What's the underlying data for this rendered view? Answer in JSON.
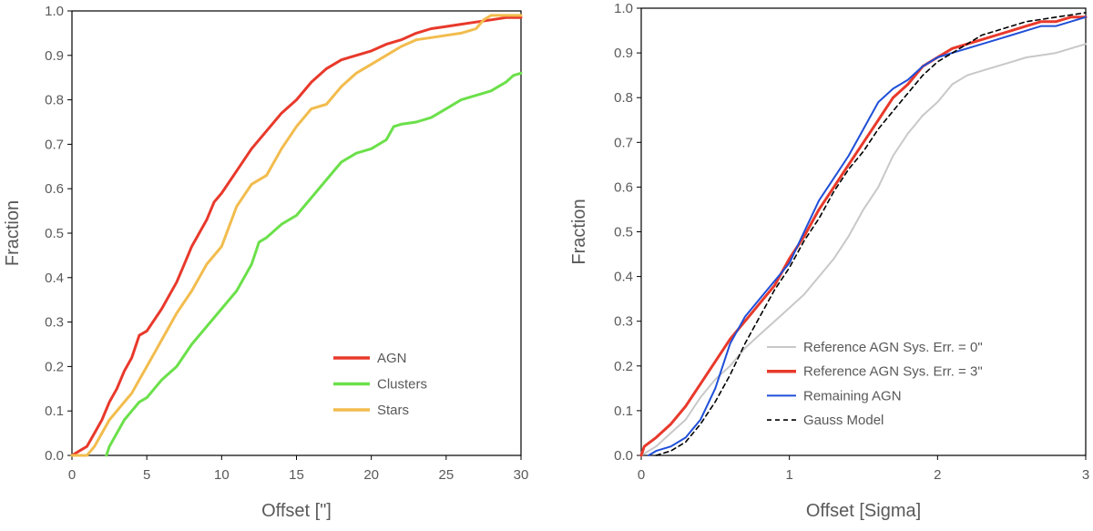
{
  "chart_data": [
    {
      "type": "line",
      "title": "",
      "xlabel": "Offset [\"]",
      "ylabel": "Fraction",
      "xlim": [
        0,
        30
      ],
      "ylim": [
        0,
        1
      ],
      "xticks": [
        "0",
        "5",
        "10",
        "15",
        "20",
        "25",
        "30"
      ],
      "yticks": [
        "0.0",
        "0.1",
        "0.2",
        "0.3",
        "0.4",
        "0.5",
        "0.6",
        "0.7",
        "0.8",
        "0.9",
        "1.0"
      ],
      "grid": false,
      "legend": "bottom-right",
      "series": [
        {
          "name": "AGN",
          "color": "#e8392b",
          "dash": "",
          "x": [
            0,
            0.5,
            1,
            1.5,
            2,
            2.5,
            3,
            3.5,
            4,
            4.5,
            5,
            6,
            6.5,
            7,
            7.5,
            8,
            8.5,
            9,
            9.5,
            10,
            11,
            12,
            13,
            14,
            15,
            16,
            17,
            18,
            19,
            20,
            21,
            22,
            23,
            24,
            25,
            26,
            27,
            28,
            29,
            30
          ],
          "y": [
            0,
            0.01,
            0.02,
            0.05,
            0.08,
            0.12,
            0.15,
            0.19,
            0.22,
            0.27,
            0.28,
            0.33,
            0.36,
            0.39,
            0.43,
            0.47,
            0.5,
            0.53,
            0.57,
            0.59,
            0.64,
            0.69,
            0.73,
            0.77,
            0.8,
            0.84,
            0.87,
            0.89,
            0.9,
            0.91,
            0.925,
            0.935,
            0.95,
            0.96,
            0.965,
            0.97,
            0.975,
            0.98,
            0.985,
            0.985
          ]
        },
        {
          "name": "Clusters",
          "color": "#6be04a",
          "dash": "",
          "x": [
            2.3,
            2.5,
            3,
            3.5,
            4,
            4.5,
            5,
            5.5,
            6,
            7,
            8,
            9,
            10,
            11,
            12,
            12.5,
            13,
            14,
            15,
            16,
            17,
            18,
            19,
            20,
            21,
            21.5,
            22,
            23,
            24,
            25,
            26,
            27,
            28,
            29,
            29.5,
            30
          ],
          "y": [
            0,
            0.02,
            0.05,
            0.08,
            0.1,
            0.12,
            0.13,
            0.15,
            0.17,
            0.2,
            0.25,
            0.29,
            0.33,
            0.37,
            0.43,
            0.48,
            0.49,
            0.52,
            0.54,
            0.58,
            0.62,
            0.66,
            0.68,
            0.69,
            0.71,
            0.74,
            0.745,
            0.75,
            0.76,
            0.78,
            0.8,
            0.81,
            0.82,
            0.84,
            0.855,
            0.86
          ]
        },
        {
          "name": "Stars",
          "color": "#f2bc4d",
          "dash": "",
          "x": [
            0,
            1,
            1.5,
            2,
            2.5,
            3,
            3.5,
            4,
            4.5,
            5,
            5.5,
            6,
            6.5,
            7,
            8,
            9,
            10,
            11,
            12,
            13,
            14,
            15,
            16,
            17,
            18,
            19,
            20,
            21,
            22,
            23,
            24,
            25,
            26,
            27,
            27.5,
            28,
            29,
            30
          ],
          "y": [
            0,
            0,
            0.02,
            0.05,
            0.08,
            0.1,
            0.12,
            0.14,
            0.17,
            0.2,
            0.23,
            0.26,
            0.29,
            0.32,
            0.37,
            0.43,
            0.47,
            0.56,
            0.61,
            0.63,
            0.69,
            0.74,
            0.78,
            0.79,
            0.83,
            0.86,
            0.88,
            0.9,
            0.92,
            0.935,
            0.94,
            0.945,
            0.95,
            0.96,
            0.98,
            0.99,
            0.99,
            0.99
          ]
        }
      ]
    },
    {
      "type": "line",
      "title": "",
      "xlabel": "Offset [Sigma]",
      "ylabel": "Fraction",
      "xlim": [
        0,
        3
      ],
      "ylim": [
        0,
        1
      ],
      "xticks": [
        "0",
        "1",
        "2",
        "3"
      ],
      "yticks": [
        "0.0",
        "0.1",
        "0.2",
        "0.3",
        "0.4",
        "0.5",
        "0.6",
        "0.7",
        "0.8",
        "0.9",
        "1.0"
      ],
      "grid": false,
      "legend": "bottom-right",
      "series": [
        {
          "name": "Reference AGN Sys. Err. = 0\"",
          "color": "#c8c8c8",
          "dash": "",
          "x": [
            0,
            0.1,
            0.2,
            0.3,
            0.4,
            0.5,
            0.6,
            0.7,
            0.8,
            0.9,
            1.0,
            1.1,
            1.2,
            1.3,
            1.4,
            1.5,
            1.6,
            1.7,
            1.8,
            1.9,
            2.0,
            2.1,
            2.2,
            2.3,
            2.4,
            2.5,
            2.6,
            2.7,
            2.8,
            2.9,
            3.0
          ],
          "y": [
            0,
            0.02,
            0.05,
            0.08,
            0.13,
            0.17,
            0.2,
            0.24,
            0.27,
            0.3,
            0.33,
            0.36,
            0.4,
            0.44,
            0.49,
            0.55,
            0.6,
            0.67,
            0.72,
            0.76,
            0.79,
            0.83,
            0.85,
            0.86,
            0.87,
            0.88,
            0.89,
            0.895,
            0.9,
            0.91,
            0.92
          ]
        },
        {
          "name": "Reference AGN Sys. Err. = 3\"",
          "color": "#e8392b",
          "dash": "",
          "x": [
            0,
            0.02,
            0.1,
            0.2,
            0.3,
            0.4,
            0.5,
            0.6,
            0.7,
            0.8,
            0.9,
            1.0,
            1.1,
            1.2,
            1.3,
            1.4,
            1.5,
            1.6,
            1.7,
            1.8,
            1.9,
            2.0,
            2.1,
            2.2,
            2.3,
            2.4,
            2.5,
            2.6,
            2.7,
            2.8,
            2.9,
            3.0
          ],
          "y": [
            0,
            0.02,
            0.04,
            0.07,
            0.11,
            0.16,
            0.21,
            0.26,
            0.3,
            0.34,
            0.38,
            0.44,
            0.49,
            0.55,
            0.6,
            0.65,
            0.7,
            0.75,
            0.8,
            0.83,
            0.87,
            0.89,
            0.91,
            0.92,
            0.93,
            0.94,
            0.95,
            0.96,
            0.97,
            0.97,
            0.98,
            0.98
          ]
        },
        {
          "name": "Remaining AGN",
          "color": "#1f4fd8",
          "dash": "",
          "x": [
            0.05,
            0.1,
            0.2,
            0.3,
            0.4,
            0.5,
            0.6,
            0.7,
            0.8,
            0.9,
            1.0,
            1.1,
            1.2,
            1.3,
            1.4,
            1.5,
            1.6,
            1.7,
            1.8,
            1.9,
            2.0,
            2.1,
            2.2,
            2.3,
            2.4,
            2.5,
            2.6,
            2.7,
            2.8,
            2.9,
            3.0
          ],
          "y": [
            0,
            0.01,
            0.02,
            0.04,
            0.08,
            0.15,
            0.25,
            0.31,
            0.35,
            0.39,
            0.43,
            0.5,
            0.57,
            0.62,
            0.67,
            0.73,
            0.79,
            0.82,
            0.84,
            0.87,
            0.89,
            0.9,
            0.91,
            0.92,
            0.93,
            0.94,
            0.95,
            0.96,
            0.96,
            0.97,
            0.98
          ]
        },
        {
          "name": "Gauss Model",
          "color": "#000000",
          "dash": "5,4",
          "x": [
            0.1,
            0.2,
            0.3,
            0.4,
            0.5,
            0.6,
            0.7,
            0.8,
            0.9,
            1.0,
            1.1,
            1.2,
            1.3,
            1.4,
            1.5,
            1.6,
            1.7,
            1.8,
            1.9,
            2.0,
            2.1,
            2.2,
            2.3,
            2.4,
            2.5,
            2.6,
            2.7,
            2.8,
            2.9,
            3.0
          ],
          "y": [
            0,
            0.01,
            0.03,
            0.07,
            0.12,
            0.18,
            0.25,
            0.31,
            0.37,
            0.42,
            0.48,
            0.53,
            0.59,
            0.64,
            0.68,
            0.73,
            0.77,
            0.81,
            0.85,
            0.88,
            0.9,
            0.92,
            0.94,
            0.95,
            0.96,
            0.97,
            0.975,
            0.98,
            0.985,
            0.99
          ]
        }
      ]
    }
  ]
}
